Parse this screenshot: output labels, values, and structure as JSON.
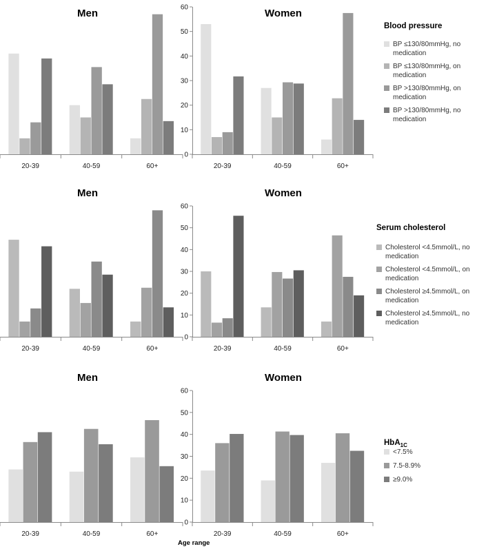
{
  "figure": {
    "x_axis_label": "Age range"
  },
  "chart_data": [
    {
      "type": "bar",
      "row": 1,
      "panel": "men",
      "title": "Men",
      "categories": [
        "20-39",
        "40-59",
        "60+"
      ],
      "ylim": [
        0,
        60
      ],
      "y_axis_visible": false,
      "series": [
        {
          "name": "BP ≤130/80mmHg, no medication",
          "color": "#e0e0e0",
          "values": [
            41,
            20,
            6.5
          ]
        },
        {
          "name": "BP ≤130/80mmHg, on medication",
          "color": "#b4b4b4",
          "values": [
            6.5,
            15,
            22.5
          ]
        },
        {
          "name": "BP >130/80mmHg, on medication",
          "color": "#9a9a9a",
          "values": [
            13,
            35.5,
            57
          ]
        },
        {
          "name": "BP >130/80mmHg, no medication",
          "color": "#7c7c7c",
          "values": [
            39,
            28.5,
            13.5
          ]
        }
      ]
    },
    {
      "type": "bar",
      "row": 1,
      "panel": "women",
      "title": "Women",
      "categories": [
        "20-39",
        "40-59",
        "60+"
      ],
      "ylim": [
        0,
        60
      ],
      "yticks": [
        0,
        10,
        20,
        30,
        40,
        50,
        60
      ],
      "y_axis_visible": true,
      "series": [
        {
          "name": "BP ≤130/80mmHg, no medication",
          "color": "#e0e0e0",
          "values": [
            53,
            27,
            6
          ]
        },
        {
          "name": "BP ≤130/80mmHg, on medication",
          "color": "#b4b4b4",
          "values": [
            7,
            15,
            22.8
          ]
        },
        {
          "name": "BP >130/80mmHg, on medication",
          "color": "#9a9a9a",
          "values": [
            9,
            29.3,
            57.5
          ]
        },
        {
          "name": "BP >130/80mmHg, no medication",
          "color": "#7c7c7c",
          "values": [
            31.7,
            28.8,
            14
          ]
        }
      ]
    },
    {
      "type": "bar",
      "row": 2,
      "panel": "men",
      "title": "Men",
      "categories": [
        "20-39",
        "40-59",
        "60+"
      ],
      "ylim": [
        0,
        60
      ],
      "y_axis_visible": false,
      "series": [
        {
          "name": "Cholesterol <4.5mmol/L, no medication",
          "color": "#bababa",
          "values": [
            44.5,
            22,
            7
          ]
        },
        {
          "name": "Cholesterol <4.5mmol/L, on medication",
          "color": "#a2a2a2",
          "values": [
            7,
            15.5,
            22.5
          ]
        },
        {
          "name": "Cholesterol ≥4.5mmol/L, on medication",
          "color": "#8a8a8a",
          "values": [
            13,
            34.5,
            58
          ]
        },
        {
          "name": "Cholesterol ≥4.5mmol/L, no medication",
          "color": "#5e5e5e",
          "values": [
            41.5,
            28.5,
            13.5
          ]
        }
      ]
    },
    {
      "type": "bar",
      "row": 2,
      "panel": "women",
      "title": "Women",
      "categories": [
        "20-39",
        "40-59",
        "60+"
      ],
      "ylim": [
        0,
        60
      ],
      "yticks": [
        0,
        10,
        20,
        30,
        40,
        50,
        60
      ],
      "y_axis_visible": true,
      "series": [
        {
          "name": "Cholesterol <4.5mmol/L, no medication",
          "color": "#bababa",
          "values": [
            30,
            13.5,
            7
          ]
        },
        {
          "name": "Cholesterol <4.5mmol/L, on medication",
          "color": "#a2a2a2",
          "values": [
            6.5,
            29.7,
            46.5
          ]
        },
        {
          "name": "Cholesterol ≥4.5mmol/L, on medication",
          "color": "#8a8a8a",
          "values": [
            8.5,
            26.7,
            27.5
          ]
        },
        {
          "name": "Cholesterol ≥4.5mmol/L, no medication",
          "color": "#5e5e5e",
          "values": [
            55.5,
            30.5,
            19
          ]
        }
      ]
    },
    {
      "type": "bar",
      "row": 3,
      "panel": "men",
      "title": "Men",
      "categories": [
        "20-39",
        "40-59",
        "60+"
      ],
      "ylim": [
        0,
        60
      ],
      "y_axis_visible": false,
      "series": [
        {
          "name": "<7.5%",
          "color": "#e0e0e0",
          "values": [
            24,
            23,
            29.5
          ]
        },
        {
          "name": "7.5-8.9%",
          "color": "#9a9a9a",
          "values": [
            36.5,
            42.5,
            46.5
          ]
        },
        {
          "name": "≥9.0%",
          "color": "#7c7c7c",
          "values": [
            41,
            35.5,
            25.5
          ]
        }
      ]
    },
    {
      "type": "bar",
      "row": 3,
      "panel": "women",
      "title": "Women",
      "categories": [
        "20-39",
        "40-59",
        "60+"
      ],
      "ylim": [
        0,
        60
      ],
      "yticks": [
        0,
        10,
        20,
        30,
        40,
        50,
        60
      ],
      "y_axis_visible": true,
      "series": [
        {
          "name": "<7.5%",
          "color": "#e0e0e0",
          "values": [
            23.5,
            19,
            27
          ]
        },
        {
          "name": "7.5-8.9%",
          "color": "#9a9a9a",
          "values": [
            36,
            41.3,
            40.5
          ]
        },
        {
          "name": "≥9.0%",
          "color": "#7c7c7c",
          "values": [
            40.2,
            39.7,
            32.5
          ]
        }
      ]
    }
  ],
  "legends": [
    {
      "row": 1,
      "title": "Blood pressure",
      "items": [
        {
          "lines": [
            "BP ≤130/80mmHg, no",
            "medication"
          ],
          "color": "#e0e0e0"
        },
        {
          "lines": [
            "BP ≤130/80mmHg, on",
            "medication"
          ],
          "color": "#b4b4b4"
        },
        {
          "lines": [
            "BP >130/80mmHg, on",
            "medication"
          ],
          "color": "#9a9a9a"
        },
        {
          "lines": [
            "BP >130/80mmHg, no",
            "medication"
          ],
          "color": "#7c7c7c"
        }
      ]
    },
    {
      "row": 2,
      "title": "Serum cholesterol",
      "items": [
        {
          "lines": [
            "Cholesterol <4.5mmol/L, no",
            "medication"
          ],
          "color": "#bababa"
        },
        {
          "lines": [
            "Cholesterol <4.5mmol/L, on",
            "medication"
          ],
          "color": "#a2a2a2"
        },
        {
          "lines": [
            "Cholesterol ≥4.5mmol/L, on",
            "medication"
          ],
          "color": "#8a8a8a"
        },
        {
          "lines": [
            "Cholesterol ≥4.5mmol/L, no",
            "medication"
          ],
          "color": "#5e5e5e"
        }
      ]
    },
    {
      "row": 3,
      "title": "HbA",
      "title_subscript": "1C",
      "items": [
        {
          "lines": [
            "<7.5%"
          ],
          "color": "#e0e0e0"
        },
        {
          "lines": [
            "7.5-8.9%"
          ],
          "color": "#9a9a9a"
        },
        {
          "lines": [
            "≥9.0%"
          ],
          "color": "#7c7c7c"
        }
      ]
    }
  ]
}
